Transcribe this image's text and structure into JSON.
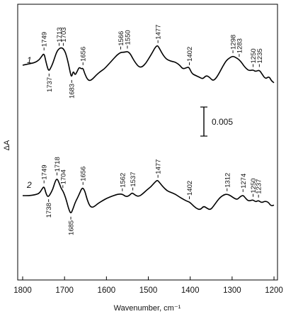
{
  "chart_data": {
    "type": "line",
    "title": "",
    "xlabel": "Wavenumber, cm⁻¹",
    "ylabel": "ΔA",
    "xlim": [
      1800,
      1195
    ],
    "xticks": [
      1800,
      1700,
      1600,
      1500,
      1400,
      1300,
      1200
    ],
    "yticks": [],
    "grid": false,
    "scale_bar": {
      "label": "0.005",
      "value": 0.005
    },
    "series": [
      {
        "name": "1",
        "points": [
          [
            1800,
            0.0
          ],
          [
            1790,
            0.0002
          ],
          [
            1780,
            0.0004
          ],
          [
            1770,
            0.0006
          ],
          [
            1760,
            0.0012
          ],
          [
            1754,
            0.002
          ],
          [
            1749,
            0.0026
          ],
          [
            1745,
            0.001
          ],
          [
            1740,
            -0.0008
          ],
          [
            1737,
            -0.0012
          ],
          [
            1733,
            -0.0006
          ],
          [
            1728,
            0.0004
          ],
          [
            1723,
            0.0018
          ],
          [
            1718,
            0.003
          ],
          [
            1713,
            0.0036
          ],
          [
            1708,
            0.0038
          ],
          [
            1703,
            0.0036
          ],
          [
            1698,
            0.0028
          ],
          [
            1694,
            0.0016
          ],
          [
            1690,
            0.0
          ],
          [
            1686,
            -0.0018
          ],
          [
            1683,
            -0.0026
          ],
          [
            1679,
            -0.0012
          ],
          [
            1675,
            -0.0022
          ],
          [
            1670,
            -0.0014
          ],
          [
            1665,
            -0.0004
          ],
          [
            1660,
            -0.0008
          ],
          [
            1656,
            -0.0006
          ],
          [
            1652,
            -0.0018
          ],
          [
            1646,
            -0.003
          ],
          [
            1640,
            -0.0034
          ],
          [
            1633,
            -0.003
          ],
          [
            1625,
            -0.0022
          ],
          [
            1615,
            -0.0014
          ],
          [
            1605,
            -0.0008
          ],
          [
            1595,
            0.0002
          ],
          [
            1585,
            0.0012
          ],
          [
            1575,
            0.0022
          ],
          [
            1566,
            0.0028
          ],
          [
            1558,
            0.0028
          ],
          [
            1550,
            0.003
          ],
          [
            1544,
            0.0026
          ],
          [
            1538,
            0.0016
          ],
          [
            1530,
            0.0004
          ],
          [
            1522,
            -0.0004
          ],
          [
            1515,
            -0.0004
          ],
          [
            1506,
            0.0004
          ],
          [
            1498,
            0.0016
          ],
          [
            1490,
            0.0028
          ],
          [
            1484,
            0.0038
          ],
          [
            1480,
            0.0042
          ],
          [
            1477,
            0.0042
          ],
          [
            1472,
            0.0034
          ],
          [
            1466,
            0.0024
          ],
          [
            1458,
            0.0014
          ],
          [
            1450,
            0.001
          ],
          [
            1442,
            0.0008
          ],
          [
            1434,
            0.0006
          ],
          [
            1425,
            0.0
          ],
          [
            1418,
            -0.0008
          ],
          [
            1410,
            -0.0006
          ],
          [
            1405,
            -0.0004
          ],
          [
            1402,
            -0.0006
          ],
          [
            1396,
            -0.0018
          ],
          [
            1388,
            -0.0022
          ],
          [
            1378,
            -0.0026
          ],
          [
            1370,
            -0.003
          ],
          [
            1362,
            -0.0022
          ],
          [
            1354,
            -0.0026
          ],
          [
            1346,
            -0.0034
          ],
          [
            1338,
            -0.0028
          ],
          [
            1330,
            -0.0016
          ],
          [
            1322,
            -0.0002
          ],
          [
            1314,
            0.001
          ],
          [
            1306,
            0.0016
          ],
          [
            1298,
            0.002
          ],
          [
            1290,
            0.0016
          ],
          [
            1283,
            0.0012
          ],
          [
            1276,
            0.0004
          ],
          [
            1268,
            -0.0006
          ],
          [
            1260,
            -0.0012
          ],
          [
            1250,
            -0.001
          ],
          [
            1244,
            -0.0014
          ],
          [
            1235,
            -0.001
          ],
          [
            1228,
            -0.002
          ],
          [
            1220,
            -0.003
          ],
          [
            1212,
            -0.0024
          ],
          [
            1206,
            -0.0034
          ],
          [
            1200,
            -0.0038
          ]
        ],
        "annotations": [
          {
            "x": 1749,
            "label": "1749",
            "side": "up"
          },
          {
            "x": 1713,
            "label": "1713",
            "side": "up"
          },
          {
            "x": 1703,
            "label": "1703",
            "side": "up"
          },
          {
            "x": 1566,
            "label": "1566",
            "side": "up"
          },
          {
            "x": 1550,
            "label": "1550",
            "side": "up"
          },
          {
            "x": 1477,
            "label": "1477",
            "side": "up"
          },
          {
            "x": 1402,
            "label": "1402",
            "side": "up"
          },
          {
            "x": 1298,
            "label": "1298",
            "side": "up"
          },
          {
            "x": 1283,
            "label": "1283",
            "side": "up"
          },
          {
            "x": 1250,
            "label": "1250",
            "side": "up"
          },
          {
            "x": 1235,
            "label": "1235",
            "side": "up"
          },
          {
            "x": 1737,
            "label": "1737",
            "side": "down"
          },
          {
            "x": 1683,
            "label": "1683",
            "side": "down"
          },
          {
            "x": 1656,
            "label": "1656",
            "side": "up"
          }
        ]
      },
      {
        "name": "2",
        "points": [
          [
            1800,
            0.0
          ],
          [
            1785,
            0.0
          ],
          [
            1770,
            0.0002
          ],
          [
            1760,
            0.0006
          ],
          [
            1754,
            0.0016
          ],
          [
            1749,
            0.0024
          ],
          [
            1745,
            0.0008
          ],
          [
            1741,
            -0.0002
          ],
          [
            1738,
            -0.0002
          ],
          [
            1734,
            0.0004
          ],
          [
            1728,
            0.0016
          ],
          [
            1723,
            0.0034
          ],
          [
            1718,
            0.0044
          ],
          [
            1713,
            0.0032
          ],
          [
            1708,
            0.0018
          ],
          [
            1704,
            0.0012
          ],
          [
            1700,
            0.0002
          ],
          [
            1695,
            -0.0014
          ],
          [
            1690,
            -0.0034
          ],
          [
            1685,
            -0.0046
          ],
          [
            1680,
            -0.0034
          ],
          [
            1675,
            -0.0018
          ],
          [
            1670,
            -0.0008
          ],
          [
            1664,
            0.0006
          ],
          [
            1660,
            0.0016
          ],
          [
            1656,
            0.002
          ],
          [
            1651,
            0.001
          ],
          [
            1646,
            -0.001
          ],
          [
            1640,
            -0.0026
          ],
          [
            1634,
            -0.003
          ],
          [
            1627,
            -0.0026
          ],
          [
            1618,
            -0.0018
          ],
          [
            1608,
            -0.0012
          ],
          [
            1598,
            -0.0006
          ],
          [
            1588,
            -0.0002
          ],
          [
            1578,
            0.0002
          ],
          [
            1570,
            0.0004
          ],
          [
            1562,
            0.0004
          ],
          [
            1555,
            -0.0002
          ],
          [
            1548,
            -0.0002
          ],
          [
            1540,
            0.0006
          ],
          [
            1537,
            0.0006
          ],
          [
            1530,
            0.0
          ],
          [
            1522,
            -0.0002
          ],
          [
            1514,
            0.0004
          ],
          [
            1504,
            0.0014
          ],
          [
            1494,
            0.0022
          ],
          [
            1486,
            0.0032
          ],
          [
            1480,
            0.0038
          ],
          [
            1477,
            0.0038
          ],
          [
            1471,
            0.003
          ],
          [
            1463,
            0.002
          ],
          [
            1455,
            0.0012
          ],
          [
            1446,
            0.0008
          ],
          [
            1436,
            0.0004
          ],
          [
            1425,
            -0.0004
          ],
          [
            1415,
            -0.001
          ],
          [
            1408,
            -0.0014
          ],
          [
            1402,
            -0.0016
          ],
          [
            1396,
            -0.0022
          ],
          [
            1386,
            -0.0032
          ],
          [
            1376,
            -0.0036
          ],
          [
            1368,
            -0.0026
          ],
          [
            1360,
            -0.0032
          ],
          [
            1352,
            -0.0036
          ],
          [
            1344,
            -0.0026
          ],
          [
            1336,
            -0.0014
          ],
          [
            1328,
            -0.0004
          ],
          [
            1320,
            0.0002
          ],
          [
            1312,
            0.0004
          ],
          [
            1304,
            0.0
          ],
          [
            1296,
            -0.0006
          ],
          [
            1288,
            -0.001
          ],
          [
            1282,
            -0.0004
          ],
          [
            1274,
            0.0002
          ],
          [
            1267,
            -0.0008
          ],
          [
            1260,
            -0.0014
          ],
          [
            1250,
            -0.001
          ],
          [
            1244,
            -0.0016
          ],
          [
            1237,
            -0.0012
          ],
          [
            1230,
            -0.0018
          ],
          [
            1222,
            -0.0014
          ],
          [
            1214,
            -0.0016
          ],
          [
            1207,
            -0.0026
          ],
          [
            1200,
            -0.0024
          ]
        ],
        "annotations": [
          {
            "x": 1749,
            "label": "1749",
            "side": "up"
          },
          {
            "x": 1718,
            "label": "1718",
            "side": "up"
          },
          {
            "x": 1704,
            "label": "1704",
            "side": "up"
          },
          {
            "x": 1656,
            "label": "1656",
            "side": "up"
          },
          {
            "x": 1562,
            "label": "1562",
            "side": "up"
          },
          {
            "x": 1537,
            "label": "1537",
            "side": "up"
          },
          {
            "x": 1477,
            "label": "1477",
            "side": "up"
          },
          {
            "x": 1402,
            "label": "1402",
            "side": "up"
          },
          {
            "x": 1312,
            "label": "1312",
            "side": "up"
          },
          {
            "x": 1274,
            "label": "1274",
            "side": "up"
          },
          {
            "x": 1250,
            "label": "1250",
            "side": "up"
          },
          {
            "x": 1237,
            "label": "1237",
            "side": "up"
          },
          {
            "x": 1738,
            "label": "1738",
            "side": "down"
          },
          {
            "x": 1685,
            "label": "1685",
            "side": "down"
          }
        ]
      }
    ]
  }
}
